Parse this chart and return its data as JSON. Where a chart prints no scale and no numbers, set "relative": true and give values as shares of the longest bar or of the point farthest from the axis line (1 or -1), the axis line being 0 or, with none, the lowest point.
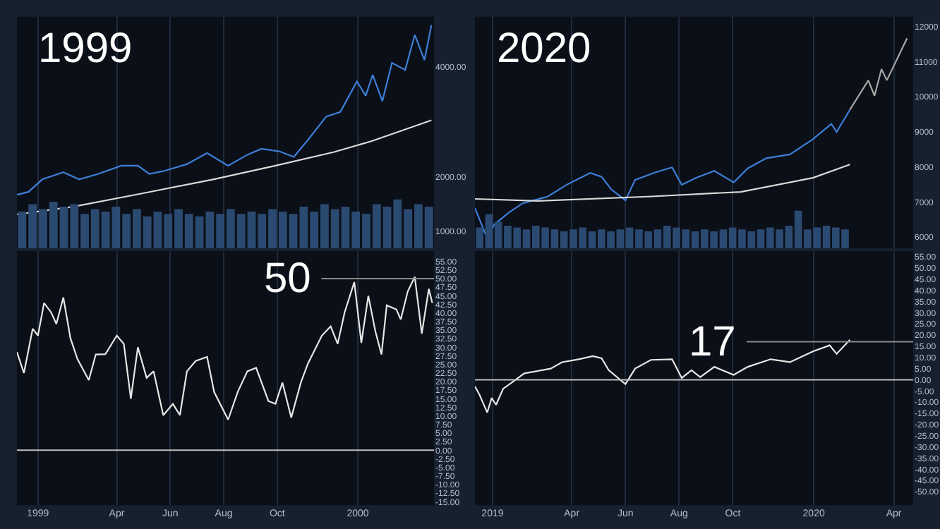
{
  "chart_data": [
    {
      "type": "line",
      "title": "1999",
      "xlim": [
        "1998-12-08",
        "2000-03-28"
      ],
      "xticks": [
        {
          "value": "1999-01-01",
          "label": null
        },
        {
          "value": "1999-04-01",
          "label": null
        },
        {
          "value": "1999-06-01",
          "label": null
        },
        {
          "value": "1999-08-01",
          "label": null
        },
        {
          "value": "1999-10-01",
          "label": null
        },
        {
          "value": "2000-01-01",
          "label": null
        }
      ],
      "ylim": [
        690,
        4920
      ],
      "yticks": [
        {
          "value": 4000,
          "label": "4000.00"
        },
        {
          "value": 2000,
          "label": "2000.00"
        },
        {
          "value": 1000,
          "label": "1000.00"
        }
      ],
      "tick_labels": "y",
      "grid": "x",
      "series": [
        {
          "color": "#3d7fd9",
          "x": [
            "1998-12-08",
            "1998-12-21",
            "1999-01-06",
            "1999-01-30",
            "1999-02-17",
            "1999-03-11",
            "1999-04-06",
            "1999-04-25",
            "1999-05-08",
            "1999-05-24",
            "1999-06-20",
            "1999-07-13",
            "1999-08-06",
            "1999-08-28",
            "1999-09-13",
            "1999-10-04",
            "1999-10-20",
            "1999-11-05",
            "1999-11-26",
            "1999-12-12",
            "1999-12-31",
            "2000-01-10",
            "2000-01-18",
            "2000-01-29",
            "2000-02-09",
            "2000-02-24",
            "2000-03-06",
            "2000-03-17",
            "2000-03-25"
          ],
          "values": [
            1670,
            1720,
            1950,
            2080,
            1950,
            2050,
            2200,
            2200,
            2050,
            2100,
            2230,
            2430,
            2200,
            2400,
            2510,
            2460,
            2360,
            2670,
            3100,
            3180,
            3740,
            3480,
            3860,
            3380,
            4080,
            3950,
            4590,
            4130,
            4770
          ]
        },
        {
          "color": "#d9d9d9",
          "x": [
            "1998-12-08",
            "1999-02-10",
            "1999-05-02",
            "1999-07-20",
            "1999-09-29",
            "1999-12-05",
            "2000-01-17",
            "2000-03-25"
          ],
          "values": [
            1310,
            1450,
            1700,
            1950,
            2200,
            2450,
            2650,
            3030
          ]
        }
      ]
    },
    {
      "type": "bar",
      "relative": true,
      "tick_labels": false,
      "categories": [
        null,
        null,
        null,
        null,
        null,
        null,
        null,
        null,
        null,
        null,
        null,
        null,
        null,
        null,
        null,
        null,
        null,
        null,
        null,
        null,
        null,
        null,
        null,
        null,
        null,
        null,
        null,
        null,
        null,
        null,
        null,
        null,
        null,
        null,
        null,
        null,
        null,
        null,
        null,
        null
      ],
      "color": "#2b4a72",
      "values": [
        0.75,
        0.9,
        0.8,
        0.95,
        0.85,
        0.9,
        0.7,
        0.8,
        0.75,
        0.85,
        0.7,
        0.8,
        0.65,
        0.75,
        0.7,
        0.8,
        0.7,
        0.65,
        0.75,
        0.7,
        0.8,
        0.7,
        0.75,
        0.7,
        0.8,
        0.75,
        0.7,
        0.85,
        0.75,
        0.9,
        0.8,
        0.85,
        0.75,
        0.7,
        0.9,
        0.85,
        1.0,
        0.8,
        0.9,
        0.85
      ]
    },
    {
      "type": "line",
      "title": "2020",
      "xlim": [
        "2018-12-12",
        "2020-04-23"
      ],
      "xticks": [
        {
          "value": "2019-01-01",
          "label": null
        },
        {
          "value": "2019-04-01",
          "label": null
        },
        {
          "value": "2019-06-01",
          "label": null
        },
        {
          "value": "2019-08-01",
          "label": null
        },
        {
          "value": "2019-10-01",
          "label": null
        },
        {
          "value": "2020-01-01",
          "label": null
        },
        {
          "value": "2020-04-01",
          "label": null
        }
      ],
      "ylim": [
        5680,
        12280
      ],
      "yticks": [
        12000,
        11000,
        10000,
        9000,
        8000,
        7000,
        6000
      ],
      "tick_labels": "y",
      "grid": "x",
      "series": [
        {
          "color": "#3d7fd9",
          "x": [
            "2018-12-12",
            "2018-12-26",
            "2019-01-03",
            "2019-01-19",
            "2019-02-04",
            "2019-03-05",
            "2019-03-26",
            "2019-04-22",
            "2019-05-05",
            "2019-05-16",
            "2019-06-01",
            "2019-06-12",
            "2019-07-03",
            "2019-07-24",
            "2019-08-04",
            "2019-08-20",
            "2019-09-10",
            "2019-10-02",
            "2019-10-18",
            "2019-11-08",
            "2019-12-05",
            "2019-12-31",
            "2020-01-21",
            "2020-01-27",
            "2020-02-11"
          ],
          "values": [
            6830,
            5960,
            6360,
            6690,
            6960,
            7160,
            7490,
            7830,
            7720,
            7360,
            7050,
            7630,
            7830,
            7990,
            7490,
            7690,
            7890,
            7560,
            7960,
            8250,
            8360,
            8790,
            9230,
            9000,
            9630
          ]
        },
        {
          "color": "#d9d9d9",
          "x": [
            "2018-12-12",
            "2019-02-22",
            "2019-07-01",
            "2019-10-10",
            "2019-12-31",
            "2020-02-11"
          ],
          "values": [
            7090,
            7030,
            7160,
            7290,
            7690,
            8070
          ]
        },
        {
          "color": "#a6a6a6",
          "x": [
            "2020-02-11",
            "2020-03-03",
            "2020-03-10",
            "2020-03-18",
            "2020-03-24",
            "2020-04-16"
          ],
          "values": [
            9630,
            10470,
            10030,
            10790,
            10470,
            11670
          ]
        }
      ]
    },
    {
      "type": "bar",
      "relative": true,
      "tick_labels": false,
      "categories": [
        null,
        null,
        null,
        null,
        null,
        null,
        null,
        null,
        null,
        null,
        null,
        null,
        null,
        null,
        null,
        null,
        null,
        null,
        null,
        null,
        null,
        null,
        null,
        null,
        null,
        null,
        null,
        null,
        null,
        null,
        null,
        null,
        null,
        null,
        null,
        null,
        null,
        null,
        null,
        null
      ],
      "color": "#2b4a72",
      "values": [
        0.55,
        0.9,
        0.7,
        0.6,
        0.55,
        0.5,
        0.6,
        0.55,
        0.5,
        0.45,
        0.5,
        0.55,
        0.45,
        0.5,
        0.45,
        0.5,
        0.55,
        0.5,
        0.45,
        0.5,
        0.6,
        0.55,
        0.5,
        0.45,
        0.5,
        0.45,
        0.5,
        0.55,
        0.5,
        0.45,
        0.5,
        0.55,
        0.5,
        0.6,
        1.0,
        0.5,
        0.55,
        0.6,
        0.55,
        0.5
      ]
    },
    {
      "type": "line",
      "xlim": [
        "1998-12-08",
        "2000-03-28"
      ],
      "xticks": [
        {
          "value": "1999-01-01",
          "label": "1999"
        },
        {
          "value": "1999-04-01",
          "label": "Apr"
        },
        {
          "value": "1999-06-01",
          "label": "Jun"
        },
        {
          "value": "1999-08-01",
          "label": "Aug"
        },
        {
          "value": "1999-10-01",
          "label": "Oct"
        },
        {
          "value": "2000-01-01",
          "label": "2000"
        }
      ],
      "ylim": [
        -16,
        58
      ],
      "yticks": [
        {
          "value": 55,
          "label": "55.00"
        },
        {
          "value": 52.5,
          "label": "52.50"
        },
        {
          "value": 50,
          "label": "50.00"
        },
        {
          "value": 47.5,
          "label": "47.50"
        },
        {
          "value": 45,
          "label": "45.00"
        },
        {
          "value": 42.5,
          "label": "42.50"
        },
        {
          "value": 40,
          "label": "40.00"
        },
        {
          "value": 37.5,
          "label": "37.50"
        },
        {
          "value": 35,
          "label": "35.00"
        },
        {
          "value": 32.5,
          "label": "32.50"
        },
        {
          "value": 30,
          "label": "30.00"
        },
        {
          "value": 27.5,
          "label": "27.50"
        },
        {
          "value": 25,
          "label": "25.00"
        },
        {
          "value": 22.5,
          "label": "22.50"
        },
        {
          "value": 20,
          "label": "20.00"
        },
        {
          "value": 17.5,
          "label": "17.50"
        },
        {
          "value": 15,
          "label": "15.00"
        },
        {
          "value": 12.5,
          "label": "12.50"
        },
        {
          "value": 10,
          "label": "10.00"
        },
        {
          "value": 7.5,
          "label": "7.50"
        },
        {
          "value": 5,
          "label": "5.00"
        },
        {
          "value": 2.5,
          "label": "2.50"
        },
        {
          "value": 0,
          "label": "0.00"
        },
        {
          "value": -2.5,
          "label": "-2.50"
        },
        {
          "value": -5,
          "label": "-5.00"
        },
        {
          "value": -7.5,
          "label": "-7.50"
        },
        {
          "value": -10,
          "label": "-10.00"
        },
        {
          "value": -12.5,
          "label": "-12.50"
        },
        {
          "value": -15,
          "label": "-15.00"
        }
      ],
      "grid": "x",
      "ref_lines": [
        {
          "axis": "y",
          "value": 50,
          "label": "50",
          "color": "#8c8c8c"
        },
        {
          "axis": "y",
          "value": 0,
          "color": "#bfbfbf"
        }
      ],
      "series": [
        {
          "color": "#e6e6e6",
          "x": [
            "1998-12-08",
            "1998-12-16",
            "1998-12-26",
            "1999-01-01",
            "1999-01-08",
            "1999-01-16",
            "1999-01-22",
            "1999-01-30",
            "1999-02-07",
            "1999-02-15",
            "1999-02-28",
            "1999-03-08",
            "1999-03-19",
            "1999-04-01",
            "1999-04-09",
            "1999-04-17",
            "1999-04-25",
            "1999-05-05",
            "1999-05-13",
            "1999-05-24",
            "1999-06-04",
            "1999-06-12",
            "1999-06-20",
            "1999-06-30",
            "1999-07-13",
            "1999-07-21",
            "1999-08-06",
            "1999-08-17",
            "1999-08-28",
            "1999-09-07",
            "1999-09-21",
            "1999-09-29",
            "1999-10-07",
            "1999-10-17",
            "1999-10-28",
            "1999-11-05",
            "1999-11-21",
            "1999-12-01",
            "1999-12-09",
            "1999-12-17",
            "1999-12-28",
            "2000-01-05",
            "2000-01-13",
            "2000-01-21",
            "2000-01-28",
            "2000-02-03",
            "2000-02-14",
            "2000-02-19",
            "2000-02-27",
            "2000-03-06",
            "2000-03-14",
            "2000-03-22",
            "2000-03-26"
          ],
          "values": [
            28.6,
            22.5,
            35.4,
            33.4,
            42.9,
            40.2,
            36.8,
            44.5,
            32.7,
            26.6,
            20.4,
            27.9,
            28,
            33.4,
            31,
            15,
            30,
            21.1,
            23,
            10.2,
            13.5,
            10.2,
            23,
            26,
            27.2,
            17,
            8.9,
            17,
            23,
            24,
            14.3,
            13.5,
            19.7,
            9.5,
            19.7,
            25.2,
            33.4,
            36.1,
            31,
            40.2,
            49,
            31.3,
            45,
            34.7,
            27.9,
            42.2,
            41,
            38.1,
            46.3,
            50.5,
            34,
            47,
            42.9
          ]
        }
      ]
    },
    {
      "type": "line",
      "xlim": [
        "2018-12-12",
        "2020-04-23"
      ],
      "xticks": [
        {
          "value": "2019-01-01",
          "label": "2019"
        },
        {
          "value": "2019-04-01",
          "label": "Apr"
        },
        {
          "value": "2019-06-01",
          "label": "Jun"
        },
        {
          "value": "2019-08-01",
          "label": "Aug"
        },
        {
          "value": "2019-10-01",
          "label": "Oct"
        },
        {
          "value": "2020-01-01",
          "label": "2020"
        },
        {
          "value": "2020-04-01",
          "label": "Apr"
        }
      ],
      "ylim": [
        -56,
        57.5
      ],
      "yticks": [
        {
          "value": 55,
          "label": "55.00"
        },
        {
          "value": 50,
          "label": "50.00"
        },
        {
          "value": 45,
          "label": "45.00"
        },
        {
          "value": 40,
          "label": "40.00"
        },
        {
          "value": 35,
          "label": "35.00"
        },
        {
          "value": 30,
          "label": "30.00"
        },
        {
          "value": 25,
          "label": "25.00"
        },
        {
          "value": 20,
          "label": "20.00"
        },
        {
          "value": 15,
          "label": "15.00"
        },
        {
          "value": 10,
          "label": "10.00"
        },
        {
          "value": 5,
          "label": "5.00"
        },
        {
          "value": 0,
          "label": "0.00"
        },
        {
          "value": -5,
          "label": "-5.00"
        },
        {
          "value": -10,
          "label": "-10.00"
        },
        {
          "value": -15,
          "label": "-15.00"
        },
        {
          "value": -20,
          "label": "-20.00"
        },
        {
          "value": -25,
          "label": "-25.00"
        },
        {
          "value": -30,
          "label": "-30.00"
        },
        {
          "value": -35,
          "label": "-35.00"
        },
        {
          "value": -40,
          "label": "-40.00"
        },
        {
          "value": -45,
          "label": "-45.00"
        },
        {
          "value": -50,
          "label": "-50.00"
        }
      ],
      "grid": "x",
      "ref_lines": [
        {
          "axis": "y",
          "value": 17,
          "label": "17",
          "color": "#8c8c8c"
        },
        {
          "axis": "y",
          "value": 0,
          "color": "#bfbfbf"
        }
      ],
      "series": [
        {
          "color": "#e6e6e6",
          "x": [
            "2018-12-12",
            "2018-12-17",
            "2018-12-26",
            "2018-12-31",
            "2019-01-05",
            "2019-01-13",
            "2019-01-24",
            "2019-02-06",
            "2019-03-08",
            "2019-03-21",
            "2019-04-09",
            "2019-04-25",
            "2019-05-05",
            "2019-05-13",
            "2019-06-01",
            "2019-06-12",
            "2019-06-30",
            "2019-07-24",
            "2019-08-04",
            "2019-08-15",
            "2019-08-25",
            "2019-09-10",
            "2019-10-02",
            "2019-10-18",
            "2019-11-13",
            "2019-12-05",
            "2019-12-31",
            "2020-01-19",
            "2020-01-27",
            "2020-02-11"
          ],
          "values": [
            -2.9,
            -6.5,
            -14.6,
            -8.1,
            -11.2,
            -4,
            -0.9,
            2.9,
            5,
            7.9,
            9.2,
            10.6,
            9.6,
            4.3,
            -1.9,
            5,
            8.9,
            9.2,
            0.8,
            4.3,
            1.2,
            5.8,
            2.2,
            5.8,
            9.2,
            7.9,
            12.7,
            15.4,
            11.6,
            17.9
          ]
        }
      ]
    }
  ]
}
